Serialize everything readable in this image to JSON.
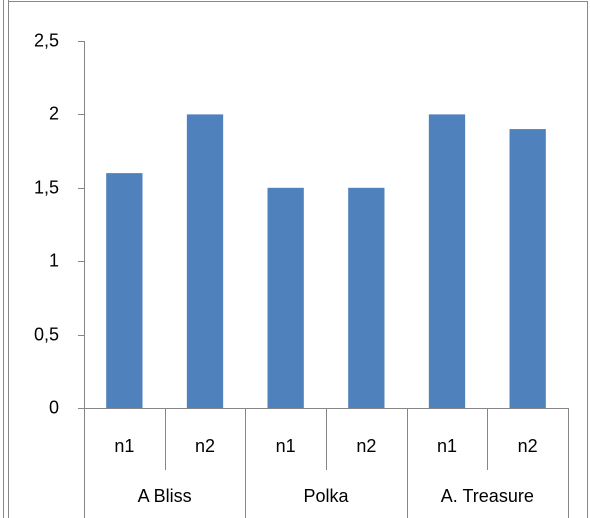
{
  "chart_data": {
    "type": "bar",
    "categories": [
      "n1",
      "n2",
      "n1",
      "n2",
      "n1",
      "n2"
    ],
    "groups": [
      "A Bliss",
      "Polka",
      "A. Treasure"
    ],
    "values": [
      1.6,
      2,
      1.5,
      1.5,
      2,
      1.9
    ],
    "color": "#4f81bd",
    "ylim": [
      0,
      2.5
    ],
    "yticks": [
      0,
      {
        "value": 0.5,
        "label": "0,5"
      },
      1,
      {
        "value": 1.5,
        "label": "1,5"
      },
      2,
      {
        "value": 2.5,
        "label": "2,5"
      }
    ],
    "grid": false
  }
}
